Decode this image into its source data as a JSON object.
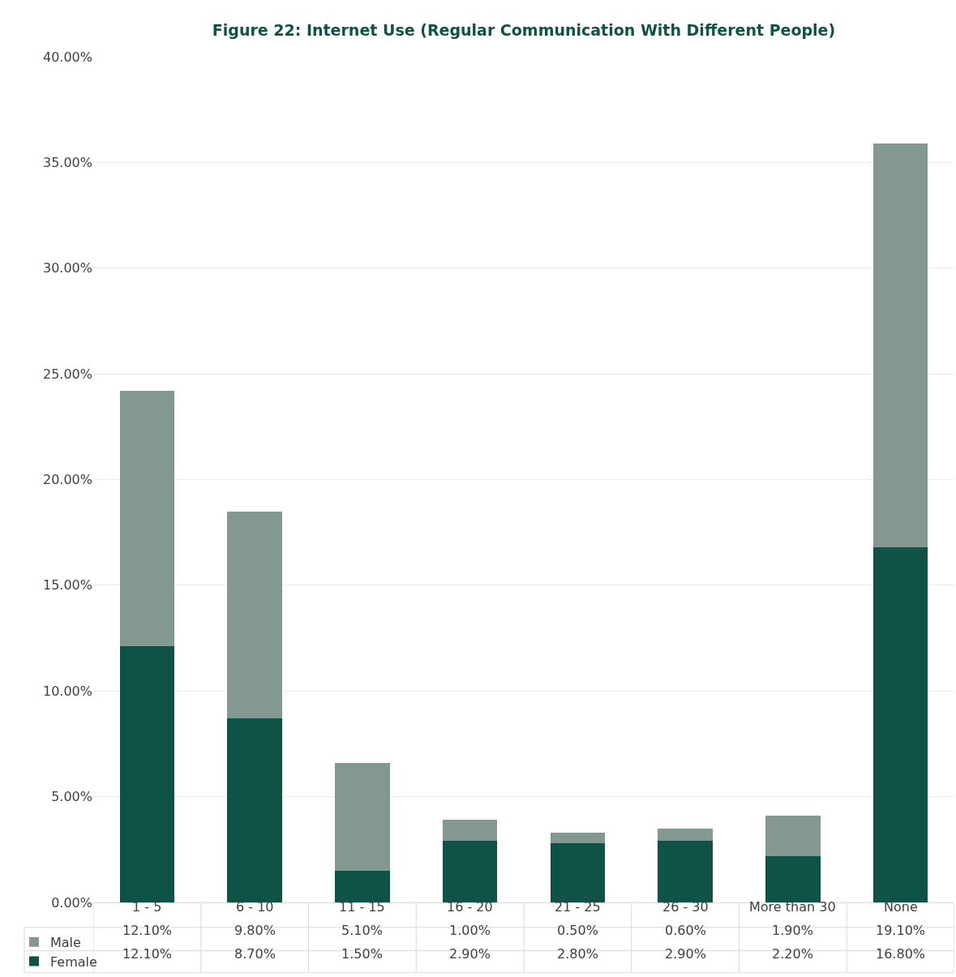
{
  "chart_data": {
    "type": "bar",
    "title": "Figure 22: Internet Use (Regular Communication With Different People)",
    "categories": [
      "1 - 5",
      "6 - 10",
      "11 - 15",
      "16 - 20",
      "21 - 25",
      "26 - 30",
      "More than 30",
      "None"
    ],
    "stacked": true,
    "series": [
      {
        "name": "Female",
        "color": "#0e5346",
        "values": [
          12.1,
          8.7,
          1.5,
          2.9,
          2.8,
          2.9,
          2.2,
          16.8
        ],
        "value_labels": [
          "12.10%",
          "8.70%",
          "1.50%",
          "2.90%",
          "2.80%",
          "2.90%",
          "2.20%",
          "16.80%"
        ]
      },
      {
        "name": "Male",
        "color": "#849892",
        "values": [
          12.1,
          9.8,
          5.1,
          1.0,
          0.5,
          0.6,
          1.9,
          19.1
        ],
        "value_labels": [
          "12.10%",
          "9.80%",
          "5.10%",
          "1.00%",
          "0.50%",
          "0.60%",
          "1.90%",
          "19.10%"
        ]
      }
    ],
    "ylim": [
      0,
      40
    ],
    "yticks": [
      {
        "value": 0,
        "label": "0.00%"
      },
      {
        "value": 5,
        "label": "5.00%"
      },
      {
        "value": 10,
        "label": "10.00%"
      },
      {
        "value": 15,
        "label": "15.00%"
      },
      {
        "value": 20,
        "label": "20.00%"
      },
      {
        "value": 25,
        "label": "25.00%"
      },
      {
        "value": 30,
        "label": "30.00%"
      },
      {
        "value": 35,
        "label": "35.00%"
      },
      {
        "value": 40,
        "label": "40.00%"
      }
    ],
    "grid": "y",
    "legend": "bottom"
  }
}
